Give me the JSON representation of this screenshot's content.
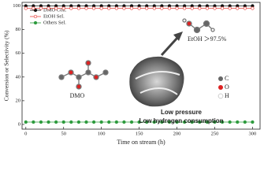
{
  "chart_data": {
    "type": "line",
    "x_label": "Time on stream (h)",
    "y_label": "Conversion or Selectivity (%)",
    "x": [
      0,
      10,
      20,
      30,
      40,
      50,
      60,
      70,
      80,
      90,
      100,
      110,
      120,
      130,
      140,
      150,
      160,
      170,
      180,
      190,
      200,
      210,
      220,
      230,
      240,
      250,
      260,
      270,
      280,
      290,
      300
    ],
    "series": [
      {
        "name": "DMO Con.",
        "color": "#111111",
        "marker": "filled",
        "values": [
          100,
          100,
          100,
          100,
          100,
          100,
          100,
          100,
          100,
          100,
          100,
          100,
          100,
          100,
          100,
          100,
          100,
          100,
          100,
          100,
          100,
          100,
          100,
          100,
          100,
          100,
          100,
          100,
          100,
          100,
          100
        ]
      },
      {
        "name": "EtOH Sel.",
        "color": "#e8413c",
        "marker": "open",
        "values": [
          98,
          98,
          98,
          98,
          98,
          98,
          98,
          98,
          98,
          98,
          98,
          98,
          98,
          98,
          98,
          98,
          98,
          98,
          98,
          98,
          98,
          98,
          98,
          98,
          98,
          98,
          98,
          98,
          98,
          98,
          98
        ]
      },
      {
        "name": "Others Sel.",
        "color": "#2e9b3e",
        "marker": "filled",
        "values": [
          2,
          2,
          2,
          2,
          2,
          2,
          2,
          2,
          2,
          2,
          2,
          2,
          2,
          2,
          2,
          2,
          2,
          2,
          2,
          2,
          2,
          2,
          2,
          2,
          2,
          2,
          2,
          2,
          2,
          2,
          2
        ]
      }
    ],
    "xlim": [
      -5,
      310
    ],
    "xticks": [
      0,
      50,
      100,
      150,
      200,
      250,
      300
    ],
    "ylim": [
      -4,
      103
    ],
    "yticks": [
      0,
      20,
      40,
      60,
      80,
      100
    ],
    "legend": "upper-left",
    "annotations": [
      "DMO",
      "EtOH ＞97.5%",
      "Low pressure",
      "Low hydrogen consumption",
      "C",
      "O",
      "H"
    ]
  }
}
